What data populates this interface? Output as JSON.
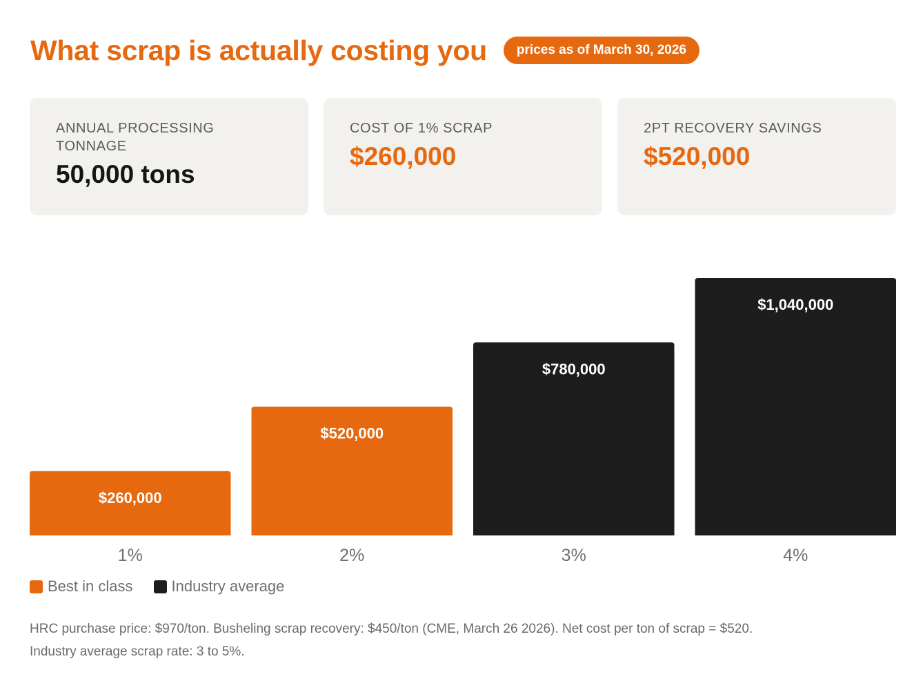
{
  "header": {
    "title": "What scrap is actually costing you",
    "date_badge": "prices as of March 30, 2026"
  },
  "stats": [
    {
      "label": "ANNUAL PROCESSING TONNAGE",
      "value": "50,000 tons"
    },
    {
      "label": "COST OF 1% SCRAP",
      "value": "$260,000"
    },
    {
      "label": "2PT RECOVERY SAVINGS",
      "value": "$520,000"
    }
  ],
  "colors": {
    "accent": "#e6680f",
    "dark": "#1d1d1d",
    "card_bg": "#f2f1ee"
  },
  "chart_data": {
    "type": "bar",
    "categories": [
      "1%",
      "2%",
      "3%",
      "4%"
    ],
    "values": [
      260000,
      520000,
      780000,
      1040000
    ],
    "value_labels": [
      "$260,000",
      "$520,000",
      "$780,000",
      "$1,040,000"
    ],
    "bar_groups": [
      "Best in class",
      "Best in class",
      "Industry average",
      "Industry average"
    ],
    "ylim": [
      0,
      1040000
    ],
    "grid": false,
    "legend_position": "bottom-left",
    "legend": [
      {
        "name": "Best in class",
        "color": "#e6680f"
      },
      {
        "name": "Industry average",
        "color": "#1d1d1d"
      }
    ],
    "title": "",
    "xlabel": "",
    "ylabel": ""
  },
  "footnote": {
    "line1": "HRC purchase price: $970/ton. Busheling scrap recovery: $450/ton (CME, March 26 2026). Net cost per ton of scrap = $520.",
    "line2": "Industry average scrap rate: 3 to 5%."
  }
}
